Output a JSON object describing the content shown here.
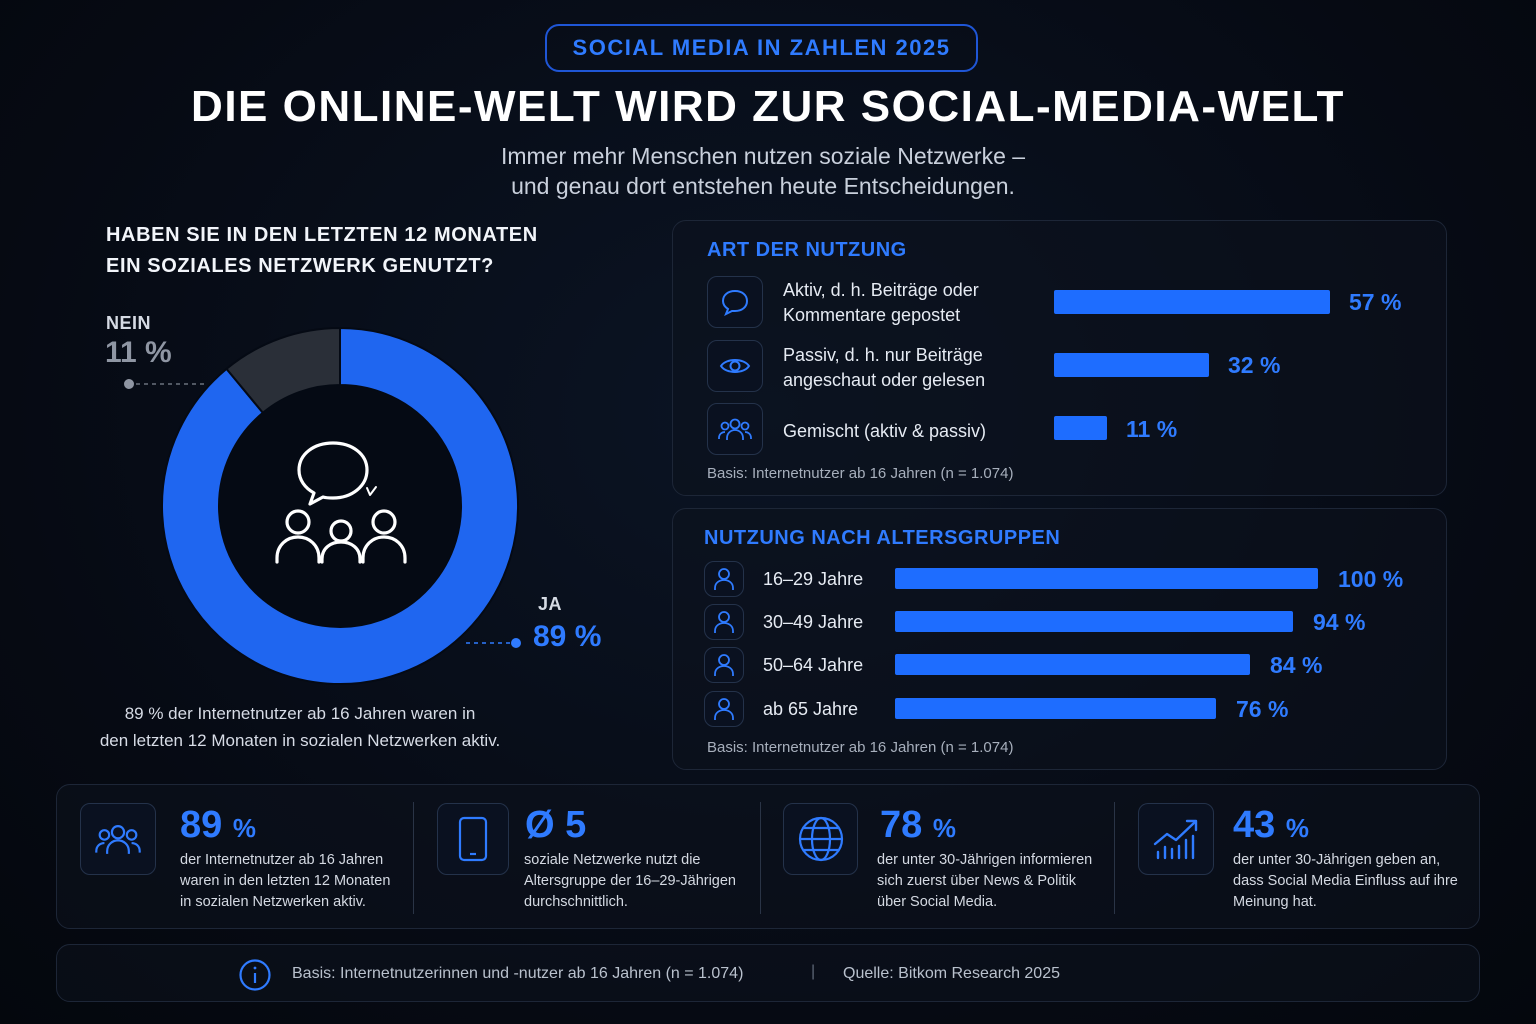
{
  "header": {
    "pill": "SOCIAL MEDIA IN ZAHLEN 2025",
    "title": "DIE ONLINE-WELT WIRD ZUR SOCIAL-MEDIA-WELT",
    "subtitle_line1": "Immer mehr Menschen nutzen soziale Netzwerke –",
    "subtitle_line2": "und genau dort entstehen heute Entscheidungen."
  },
  "colors": {
    "accent": "#2f7bff",
    "bar": "#1e6dff",
    "donut_ja": "#1f66f0",
    "donut_nein": "#2a2f38"
  },
  "chart_data": [
    {
      "type": "pie",
      "title_line1": "HABEN SIE IN DEN LETZTEN 12 MONATEN",
      "title_line2": "EIN SOZIALES NETZWERK GENUTZT?",
      "categories": [
        "JA",
        "NEIN"
      ],
      "values": [
        89,
        11
      ],
      "labels": {
        "ja": "JA",
        "ja_value": "89 %",
        "nein": "NEIN",
        "nein_value": "11 %"
      },
      "caption_line1": "89 % der Internetnutzer ab 16 Jahren waren in",
      "caption_line2": "den letzten 12 Monaten in sozialen Netzwerken aktiv.",
      "center_icon": "chat-group-icon"
    },
    {
      "type": "bar",
      "title": "ART DER NUTZUNG",
      "rows": [
        {
          "icon": "speech-bubble-icon",
          "label_line1": "Aktiv, d. h. Beiträge oder",
          "label_line2": "Kommentare gepostet",
          "value": 57,
          "value_label": "57 %"
        },
        {
          "icon": "eye-icon",
          "label_line1": "Passiv, d. h. nur Beiträge",
          "label_line2": "angeschaut oder gelesen",
          "value": 32,
          "value_label": "32 %"
        },
        {
          "icon": "group-icon",
          "label_line1": "Gemischt (aktiv & passiv)",
          "label_line2": "",
          "value": 11,
          "value_label": "11 %"
        }
      ],
      "basis": "Basis: Internetnutzer ab 16 Jahren (n = 1.074)"
    },
    {
      "type": "bar",
      "title": "NUTZUNG NACH ALTERSGRUPPEN",
      "rows": [
        {
          "icon": "user-icon",
          "label": "16–29 Jahre",
          "value": 100,
          "value_label": "100 %"
        },
        {
          "icon": "user-icon",
          "label": "30–49 Jahre",
          "value": 94,
          "value_label": "94 %"
        },
        {
          "icon": "user-icon",
          "label": "50–64 Jahre",
          "value": 84,
          "value_label": "84 %"
        },
        {
          "icon": "user-icon",
          "label": "ab 65 Jahre",
          "value": 76,
          "value_label": "76 %"
        }
      ],
      "basis": "Basis: Internetnutzer ab 16 Jahren (n = 1.074)"
    }
  ],
  "stats": [
    {
      "icon": "group-icon",
      "number": "89",
      "unit": "%",
      "line1": "der Internetnutzer ab 16 Jahren",
      "line2": "waren in den letzten 12 Monaten",
      "line3": "in sozialen Netzwerken aktiv."
    },
    {
      "icon": "smartphone-icon",
      "number": "Ø 5",
      "unit": "",
      "line1": "soziale Netzwerke nutzt die",
      "line2": "Altersgruppe der 16–29-Jährigen",
      "line3": "durchschnittlich."
    },
    {
      "icon": "globe-icon",
      "number": "78",
      "unit": "%",
      "line1": "der unter 30-Jährigen informieren",
      "line2": "sich zuerst über News & Politik",
      "line3": "über Social Media."
    },
    {
      "icon": "growth-chart-icon",
      "number": "43",
      "unit": "%",
      "line1": "der unter 30-Jährigen geben an,",
      "line2": "dass Social Media Einfluss auf ihre",
      "line3": "Meinung hat."
    }
  ],
  "footer": {
    "basis": "Basis: Internetnutzerinnen und -nutzer ab 16 Jahren (n = 1.074)",
    "separator": "|",
    "source": "Quelle: Bitkom Research 2025",
    "icon": "info-icon"
  }
}
